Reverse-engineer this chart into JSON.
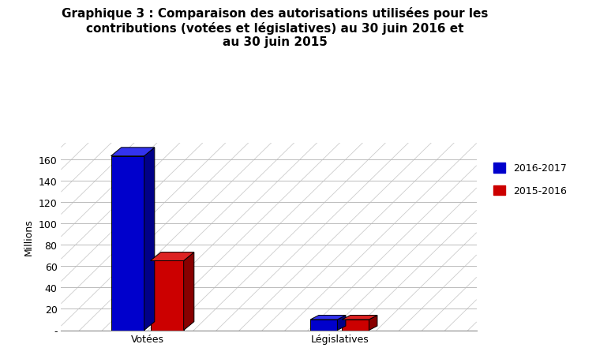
{
  "title": "Graphique 3 : Comparaison des autorisations utilisées pour les\ncontributions (votées et législatives) au 30 juin 2016 et\nau 30 juin 2015",
  "categories": [
    "Votées",
    "Législatives"
  ],
  "values_2016": [
    163,
    10
  ],
  "values_2015": [
    65,
    10
  ],
  "color_2016_front": "#0000CC",
  "color_2016_top": "#3333EE",
  "color_2016_side": "#000088",
  "color_2015_front": "#CC0000",
  "color_2015_top": "#DD2222",
  "color_2015_side": "#880000",
  "ylabel": "Millions",
  "ylim": [
    0,
    175
  ],
  "yticks": [
    0,
    20,
    40,
    60,
    80,
    100,
    120,
    140,
    160
  ],
  "legend_labels": [
    "2016-2017",
    "2015-2016"
  ],
  "background_color": "#FFFFFF",
  "grid_color": "#BBBBBB",
  "diag_color": "#CCCCCC"
}
